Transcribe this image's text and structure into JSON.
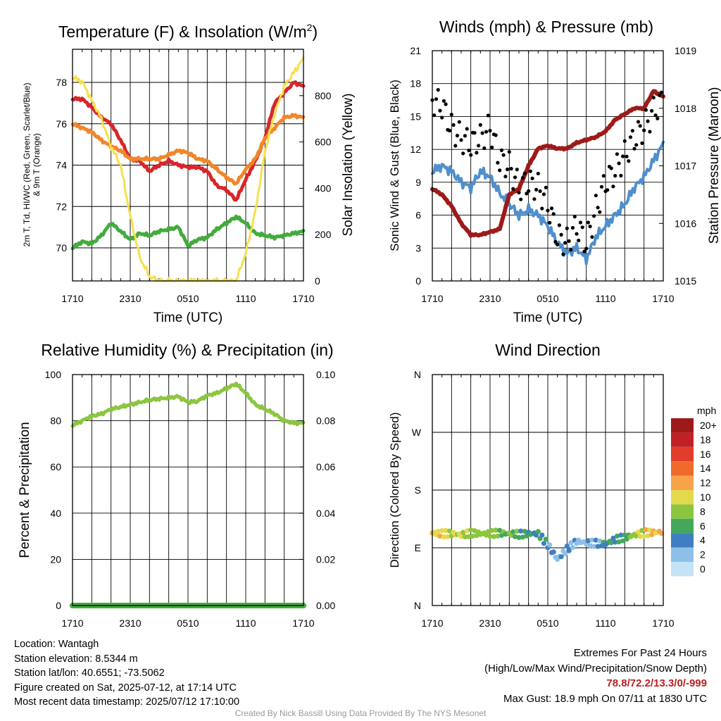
{
  "chart_data": [
    {
      "id": "temp",
      "type": "line",
      "title": "Temperature (F) & Insolation (W/m²)",
      "title_main": "Temperature (F) & Insolation (W/m",
      "title_sup": "2",
      "title_close": ")",
      "xlabel": "Time (UTC)",
      "ylabel_line1": "2m T, Td, HI/WC (Red, Green, Scarlet/Blue)",
      "ylabel_line2": "& 9m T (Orange)",
      "ylabel_right": "Solar Insolation (Yellow)",
      "x_ticks": [
        "1710",
        "2310",
        "0510",
        "1110",
        "1710"
      ],
      "ylim": [
        68.4,
        79.6
      ],
      "y_ticks": [
        70,
        72,
        74,
        76,
        78
      ],
      "y2lim": [
        0,
        1000
      ],
      "y2_ticks": [
        0,
        200,
        400,
        600,
        800
      ],
      "x_hours": [
        0,
        1,
        2,
        3,
        4,
        5,
        6,
        7,
        8,
        9,
        10,
        11,
        12,
        13,
        14,
        15,
        16,
        17,
        18,
        19,
        20,
        21,
        22,
        23,
        24
      ],
      "series": [
        {
          "name": "2m T",
          "color": "#d7262b",
          "axis": "left",
          "values": [
            77.2,
            77.2,
            76.8,
            76.3,
            76.0,
            75.2,
            74.3,
            74.2,
            73.7,
            74.0,
            74.2,
            74.0,
            73.9,
            73.9,
            73.7,
            73.0,
            72.8,
            72.3,
            73.3,
            74.2,
            75.3,
            77.0,
            77.5,
            78.0,
            77.8
          ]
        },
        {
          "name": "9m T",
          "color": "#f1862b",
          "axis": "left",
          "values": [
            76.0,
            75.8,
            75.6,
            75.2,
            74.9,
            74.7,
            74.3,
            74.3,
            74.3,
            74.3,
            74.5,
            74.7,
            74.6,
            74.3,
            74.2,
            73.8,
            73.4,
            73.1,
            73.8,
            74.3,
            75.3,
            75.8,
            76.3,
            76.4,
            76.3
          ]
        },
        {
          "name": "Td",
          "color": "#43ab3d",
          "axis": "left",
          "values": [
            70.0,
            70.3,
            70.2,
            70.6,
            71.2,
            70.8,
            70.4,
            70.7,
            70.6,
            70.8,
            70.9,
            71.0,
            70.1,
            70.4,
            70.5,
            70.9,
            71.2,
            71.5,
            71.2,
            70.7,
            70.6,
            70.5,
            70.6,
            70.7,
            70.8
          ]
        },
        {
          "name": "Solar Insolation",
          "color": "#f5e04c",
          "axis": "right",
          "values": [
            880,
            860,
            780,
            700,
            580,
            500,
            280,
            100,
            20,
            0,
            0,
            0,
            0,
            0,
            0,
            0,
            0,
            0,
            120,
            300,
            560,
            720,
            840,
            900,
            960
          ]
        }
      ]
    },
    {
      "id": "wind",
      "type": "line",
      "title": "Winds (mph) & Pressure (mb)",
      "xlabel": "Time (UTC)",
      "ylabel": "Sonic Wind & Gust (Blue, Black)",
      "ylabel_right": "Station Pressure (Maroon)",
      "x_ticks": [
        "1710",
        "2310",
        "0510",
        "1110",
        "1710"
      ],
      "ylim": [
        0,
        21
      ],
      "y_ticks": [
        0,
        3,
        6,
        9,
        12,
        15,
        18,
        21
      ],
      "y2lim": [
        1015,
        1019
      ],
      "y2_ticks": [
        1015,
        1016,
        1017,
        1018,
        1019
      ],
      "x_hours": [
        0,
        1,
        2,
        3,
        4,
        5,
        6,
        7,
        8,
        9,
        10,
        11,
        12,
        13,
        14,
        15,
        16,
        17,
        18,
        19,
        20,
        21,
        22,
        23,
        24
      ],
      "series": [
        {
          "name": "Sonic Wind",
          "color": "#4f8fcd",
          "axis": "left",
          "values": [
            10.0,
            10.5,
            10.0,
            9.0,
            8.5,
            10.0,
            9.5,
            8.0,
            7.0,
            6.0,
            6.5,
            6.0,
            5.0,
            3.5,
            2.5,
            3.0,
            2.0,
            4.0,
            5.0,
            6.0,
            7.0,
            8.5,
            9.5,
            11.0,
            12.5
          ]
        },
        {
          "name": "Gust",
          "color": "#000000",
          "axis": "left",
          "values": [
            16.5,
            16.0,
            14.0,
            13.0,
            12.5,
            13.0,
            14.0,
            11.0,
            10.5,
            8.5,
            9.0,
            8.5,
            7.0,
            4.0,
            3.5,
            5.0,
            3.5,
            6.5,
            9.0,
            10.0,
            11.5,
            13.0,
            14.0,
            15.5,
            16.5
          ]
        },
        {
          "name": "Station Pressure",
          "color": "#9e1a1a",
          "axis": "right",
          "values": [
            1016.6,
            1016.5,
            1016.3,
            1016.0,
            1015.8,
            1015.8,
            1015.85,
            1015.9,
            1016.5,
            1016.6,
            1017.0,
            1017.3,
            1017.35,
            1017.3,
            1017.3,
            1017.4,
            1017.45,
            1017.5,
            1017.6,
            1017.8,
            1017.9,
            1018.0,
            1018.0,
            1018.3,
            1018.2
          ]
        }
      ]
    },
    {
      "id": "rh",
      "type": "line",
      "title": "Relative Humidity (%) & Precipitation (in)",
      "xlabel": "",
      "ylabel": "Percent & Precipitation",
      "x_ticks": [
        "1710",
        "2310",
        "0510",
        "1110",
        "1710"
      ],
      "ylim": [
        0,
        100
      ],
      "y_ticks": [
        0,
        20,
        40,
        60,
        80,
        100
      ],
      "y2lim": [
        0,
        0.1
      ],
      "y2_ticks": [
        "0.00",
        "0.02",
        "0.04",
        "0.06",
        "0.08",
        "0.10"
      ],
      "x_hours": [
        0,
        1,
        2,
        3,
        4,
        5,
        6,
        7,
        8,
        9,
        10,
        11,
        12,
        13,
        14,
        15,
        16,
        17,
        18,
        19,
        20,
        21,
        22,
        23,
        24
      ],
      "series": [
        {
          "name": "Relative Humidity",
          "color": "#8cc63f",
          "axis": "left",
          "values": [
            78,
            80,
            82,
            83,
            85,
            86,
            87,
            88,
            89,
            89.5,
            90,
            90.5,
            88,
            88.5,
            91,
            92,
            94,
            96,
            92,
            87,
            85,
            83,
            80,
            79,
            79
          ]
        },
        {
          "name": "Precipitation",
          "color": "#43ab3d",
          "axis": "right",
          "values": [
            0,
            0,
            0,
            0,
            0,
            0,
            0,
            0,
            0,
            0,
            0,
            0,
            0,
            0,
            0,
            0,
            0,
            0,
            0,
            0,
            0,
            0,
            0,
            0,
            0
          ]
        }
      ]
    },
    {
      "id": "wdir",
      "type": "scatter",
      "title": "Wind Direction",
      "xlabel": "",
      "ylabel": "Direction (Colored By Speed)",
      "x_ticks": [
        "1710",
        "2310",
        "0510",
        "1110",
        "1710"
      ],
      "y_ticks": [
        "N",
        "E",
        "S",
        "W",
        "N"
      ],
      "ylim": [
        0,
        360
      ],
      "x_hours": [
        0,
        1,
        2,
        3,
        4,
        5,
        6,
        7,
        8,
        9,
        10,
        11,
        12,
        13,
        14,
        15,
        16,
        17,
        18,
        19,
        20,
        21,
        22,
        23,
        24
      ],
      "series": [
        {
          "name": "Direction",
          "values": [
            113,
            112,
            112,
            110,
            113,
            112,
            112,
            113,
            112,
            111,
            112,
            112,
            95,
            72,
            88,
            100,
            98,
            97,
            96,
            103,
            106,
            110,
            113,
            114,
            115
          ],
          "speeds": [
            11,
            10,
            9,
            9,
            8,
            8,
            8,
            7,
            7,
            6,
            5,
            5,
            4,
            2,
            3,
            2,
            2,
            3,
            5,
            5,
            6,
            8,
            10,
            11,
            12
          ]
        }
      ],
      "legend": {
        "title": "mph",
        "labels": [
          "20+",
          "18",
          "16",
          "14",
          "12",
          "10",
          "8",
          "6",
          "4",
          "2",
          "0"
        ],
        "colors": [
          "#9e1a1a",
          "#c12026",
          "#e23c2b",
          "#f06a2c",
          "#f7a34a",
          "#e4d94d",
          "#8cc63f",
          "#43a85c",
          "#3f7fc1",
          "#8ec0e7",
          "#c4e3f7"
        ],
        "placement": "right"
      }
    }
  ],
  "info": {
    "location": "Location: Wantagh",
    "elevation": "Station elevation: 8.5344 m",
    "latlon": "Station lat/lon: 40.6551; -73.5062",
    "created": "Figure created on Sat, 2025-07-12, at 17:14 UTC",
    "recent": "Most recent data timestamp: 2025/07/12 17:10:00"
  },
  "extremes": {
    "title": "Extremes For Past 24 Hours",
    "subtitle": "(High/Low/Max Wind/Precipitation/Snow Depth)",
    "values": "78.8/72.2/13.3/0/-999",
    "gust": "Max Gust: 18.9 mph On 07/11 at 1830 UTC"
  },
  "credit": "Created By Nick Bassill Using Data Provided By The NYS Mesonet"
}
